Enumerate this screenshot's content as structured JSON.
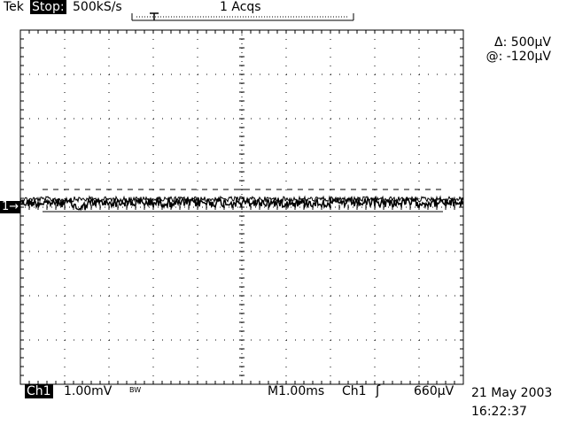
{
  "header": {
    "brand": "Tek",
    "state": "Stop:",
    "sample_rate": "500kS/s",
    "acquisitions": "1 Acqs",
    "trigger_marker": "T"
  },
  "cursors": {
    "delta": "Δ: 500µV",
    "at": "@: -120µV"
  },
  "channel_marker": "1→",
  "footer": {
    "channel": "Ch1",
    "volts_per_div": "1.00mV",
    "bandwidth": "BW",
    "time_per_div": "M1.00ms",
    "trigger_source": "Ch1",
    "trigger_slope": "ʃ",
    "trigger_level": "660µV",
    "date": "21 May 2003",
    "time": "16:22:37"
  },
  "colors": {
    "background": "#ffffff",
    "foreground": "#000000"
  }
}
